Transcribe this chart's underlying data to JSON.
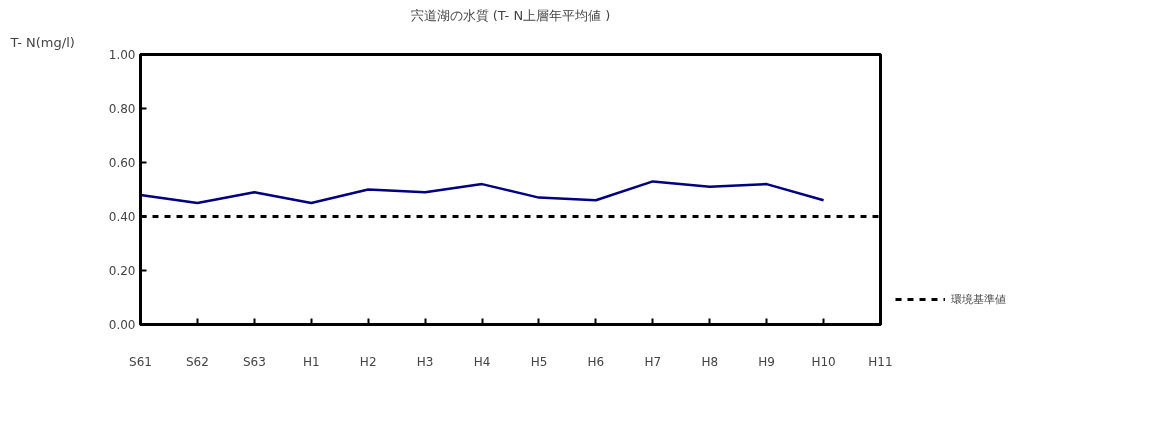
{
  "chart_data": {
    "type": "line",
    "title": "宍道湖の水質 (T- N上層年平均値 )",
    "ylabel": "T- N(mg/l)",
    "categories": [
      "S61",
      "S62",
      "S63",
      "H1",
      "H2",
      "H3",
      "H4",
      "H5",
      "H6",
      "H7",
      "H8",
      "H9",
      "H10",
      "H11"
    ],
    "series": [
      {
        "color": "#000080",
        "values": [
          0.48,
          0.45,
          0.49,
          0.45,
          0.5,
          0.49,
          0.52,
          0.47,
          0.46,
          0.53,
          0.51,
          0.52,
          0.46,
          null
        ]
      }
    ],
    "ylim": [
      0,
      1
    ],
    "yticks": [
      {
        "value": 0,
        "label": "0.00"
      },
      {
        "value": 0.2,
        "label": "0.20"
      },
      {
        "value": 0.4,
        "label": "0.40"
      },
      {
        "value": 0.6,
        "label": "0.60"
      },
      {
        "value": 0.8,
        "label": "0.80"
      },
      {
        "value": 1,
        "label": "1.00"
      }
    ],
    "ref_lines": [
      {
        "axis": "y",
        "value": 0.4,
        "label": "環境基準値",
        "color": "#000000",
        "line_style": "dashed"
      }
    ],
    "grid": false,
    "legend": "right",
    "marker": "none",
    "line_style": "solid"
  }
}
